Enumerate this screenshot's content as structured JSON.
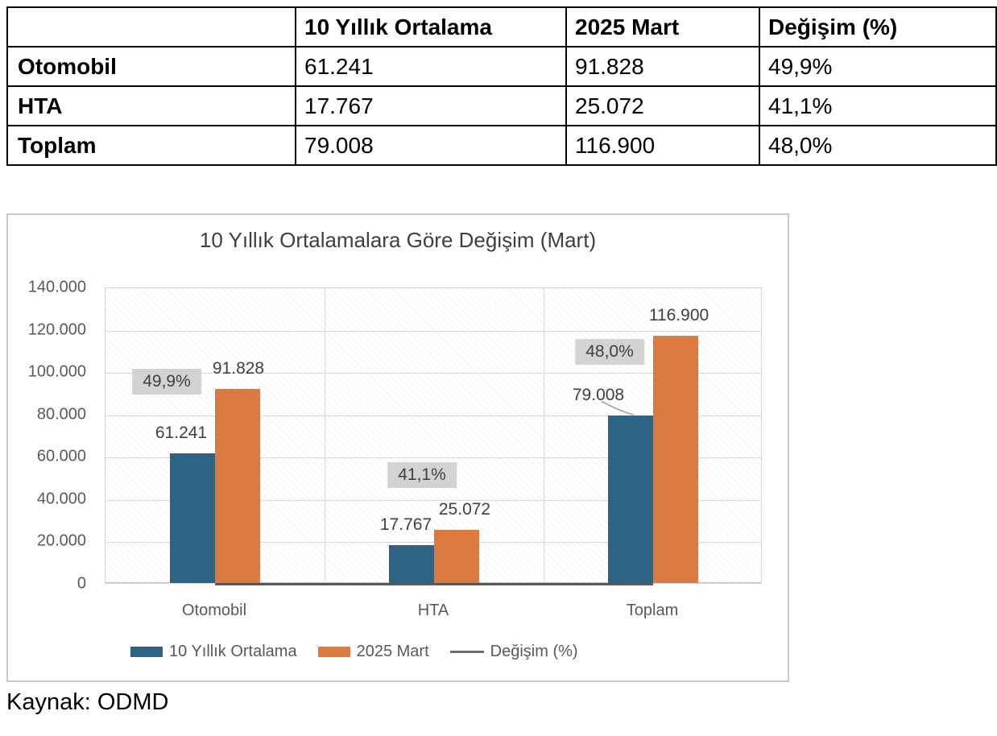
{
  "table": {
    "headers": [
      "",
      "10 Yıllık Ortalama",
      "2025 Mart",
      "Değişim (%)"
    ],
    "rows": [
      {
        "label": "Otomobil",
        "avg": "61.241",
        "mart": "91.828",
        "change": "49,9%"
      },
      {
        "label": "HTA",
        "avg": "17.767",
        "mart": "25.072",
        "change": "41,1%"
      },
      {
        "label": "Toplam",
        "avg": "79.008",
        "mart": "116.900",
        "change": "48,0%"
      }
    ]
  },
  "chart": {
    "title": "10 Yıllık Ortalamalara Göre Değişim (Mart)",
    "y_ticks": [
      "140.000",
      "120.000",
      "100.000",
      "80.000",
      "60.000",
      "40.000",
      "20.000",
      "0"
    ],
    "legend": [
      {
        "label": "10 Yıllık Ortalama",
        "type": "rect",
        "color": "#2e6384"
      },
      {
        "label": "2025 Mart",
        "type": "rect",
        "color": "#db7b41"
      },
      {
        "label": "Değişim (%)",
        "type": "line",
        "color": "#6e6e6e"
      }
    ]
  },
  "chart_data": {
    "type": "bar",
    "title": "10 Yıllık Ortalamalara Göre Değişim (Mart)",
    "categories": [
      "Otomobil",
      "HTA",
      "Toplam"
    ],
    "series": [
      {
        "name": "10 Yıllık Ortalama",
        "type": "bar",
        "color": "#2e6384",
        "values": [
          61241,
          17767,
          79008
        ],
        "value_labels": [
          "61.241",
          "17.767",
          "79.008"
        ]
      },
      {
        "name": "2025 Mart",
        "type": "bar",
        "color": "#db7b41",
        "values": [
          91828,
          25072,
          116900
        ],
        "value_labels": [
          "91.828",
          "25.072",
          "116.900"
        ]
      },
      {
        "name": "Değişim (%)",
        "type": "line",
        "color": "#595959",
        "values": [
          49.9,
          41.1,
          48.0
        ],
        "value_labels": [
          "49,9%",
          "41,1%",
          "48,0%"
        ]
      }
    ],
    "xlabel": "",
    "ylabel": "",
    "ylim": [
      0,
      140000
    ],
    "y_tick_step": 20000,
    "grid": true,
    "legend_position": "bottom"
  },
  "source": "Kaynak: ODMD"
}
